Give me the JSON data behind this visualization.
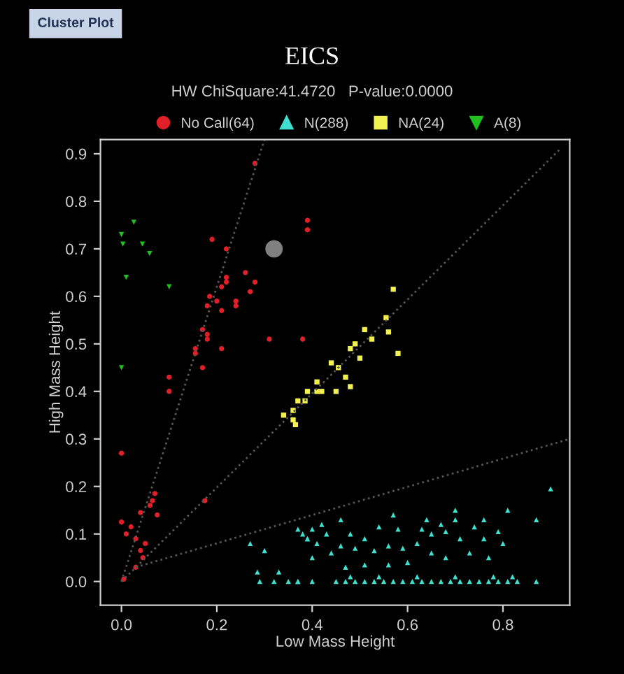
{
  "chart_data": {
    "type": "scatter",
    "title": "EICS",
    "subtitle": "HW ChiSquare:41.4720   P-value:0.0000",
    "xlabel": "Low Mass Height",
    "ylabel": "High Mass Height",
    "annotations": [
      "Cluster Plot"
    ],
    "xlim": [
      -0.044,
      0.94
    ],
    "ylim": [
      -0.05,
      0.93
    ],
    "xticks": [
      {
        "value": 0,
        "label": "0.0"
      },
      0.2,
      0.4,
      0.6,
      0.8
    ],
    "yticks": [
      {
        "value": 0,
        "label": "0.0"
      },
      0.1,
      0.2,
      0.3,
      0.4,
      0.5,
      0.6,
      0.7,
      0.8,
      0.9
    ],
    "grid": false,
    "legend": "top",
    "series": [
      {
        "type": "line",
        "color": "#555555",
        "line_style": "dotted",
        "marker": "none",
        "x": [
          0.0,
          0.3
        ],
        "values": [
          0.0,
          0.93
        ]
      },
      {
        "type": "line",
        "color": "#555555",
        "line_style": "dotted",
        "marker": "none",
        "x": [
          0.0,
          0.92
        ],
        "values": [
          0.0,
          0.91
        ]
      },
      {
        "type": "line",
        "color": "#555555",
        "line_style": "dotted",
        "marker": "none",
        "x": [
          0.03,
          0.94
        ],
        "values": [
          0.03,
          0.3
        ]
      },
      {
        "name": "No Call(64)",
        "color": "#e02028",
        "marker": "circle",
        "x": [
          0.19,
          0.22,
          0.22,
          0.22,
          0.26,
          0.28,
          0.21,
          0.27,
          0.185,
          0.2,
          0.24,
          0.18,
          0.21,
          0.24,
          0.17,
          0.18,
          0.18,
          0.21,
          0.155,
          0.155,
          0.17,
          0.39,
          0.39,
          0.31,
          0.38,
          0.1,
          0.1,
          0.28,
          0.0,
          0.07,
          0.065,
          0.06,
          0.04,
          0.075,
          0.0,
          0.02,
          0.01,
          0.03,
          0.05,
          0.04,
          0.045,
          0.03,
          0.005,
          0.175
        ],
        "values": [
          0.72,
          0.7,
          0.64,
          0.63,
          0.65,
          0.63,
          0.62,
          0.61,
          0.6,
          0.59,
          0.59,
          0.58,
          0.57,
          0.58,
          0.53,
          0.52,
          0.51,
          0.49,
          0.49,
          0.48,
          0.45,
          0.76,
          0.74,
          0.51,
          0.51,
          0.43,
          0.4,
          0.88,
          0.27,
          0.185,
          0.17,
          0.16,
          0.145,
          0.14,
          0.125,
          0.115,
          0.1,
          0.09,
          0.08,
          0.065,
          0.05,
          0.03,
          0.005,
          0.17
        ]
      },
      {
        "name": "N(288)",
        "color": "#40e0d0",
        "marker": "triangle",
        "x": [
          0.9,
          0.87,
          0.81,
          0.76,
          0.7,
          0.7,
          0.64,
          0.57,
          0.46,
          0.42,
          0.4,
          0.39,
          0.43,
          0.48,
          0.51,
          0.54,
          0.58,
          0.63,
          0.67,
          0.68,
          0.74,
          0.79,
          0.8,
          0.76,
          0.71,
          0.65,
          0.62,
          0.59,
          0.56,
          0.53,
          0.49,
          0.46,
          0.44,
          0.4,
          0.37,
          0.4,
          0.65,
          0.68,
          0.73,
          0.77,
          0.82,
          0.87,
          0.6,
          0.56,
          0.51,
          0.47,
          0.27,
          0.285,
          0.29,
          0.3,
          0.32,
          0.35,
          0.37,
          0.38,
          0.39,
          0.37,
          0.41,
          0.33,
          0.45,
          0.47,
          0.49,
          0.51,
          0.53,
          0.55,
          0.57,
          0.59,
          0.61,
          0.63,
          0.65,
          0.67,
          0.69,
          0.71,
          0.73,
          0.75,
          0.77,
          0.79,
          0.81,
          0.83,
          0.48,
          0.54,
          0.62,
          0.7,
          0.78
        ],
        "values": [
          0.195,
          0.13,
          0.15,
          0.13,
          0.15,
          0.13,
          0.13,
          0.14,
          0.13,
          0.12,
          0.11,
          0.09,
          0.1,
          0.1,
          0.09,
          0.115,
          0.11,
          0.11,
          0.12,
          0.105,
          0.115,
          0.105,
          0.08,
          0.09,
          0.09,
          0.1,
          0.08,
          0.07,
          0.075,
          0.065,
          0.07,
          0.075,
          0.06,
          0.05,
          0.0,
          0.0,
          0.06,
          0.05,
          0.06,
          0.05,
          0.01,
          0.0,
          0.04,
          0.035,
          0.035,
          0.03,
          0.08,
          0.02,
          0.0,
          0.065,
          0.0,
          0.0,
          0.0,
          0.1,
          0.09,
          0.11,
          0.08,
          0.02,
          0.0,
          0.0,
          0.0,
          0.0,
          0.0,
          0.0,
          0.0,
          0.0,
          0.0,
          0.0,
          0.0,
          0.0,
          0.0,
          0.0,
          0.0,
          0.0,
          0.0,
          0.0,
          0.0,
          0.0,
          0.01,
          0.01,
          0.01,
          0.01,
          0.01
        ]
      },
      {
        "name": "NA(24)",
        "color": "#f0f050",
        "marker": "square",
        "x": [
          0.57,
          0.555,
          0.56,
          0.51,
          0.525,
          0.49,
          0.48,
          0.5,
          0.58,
          0.44,
          0.455,
          0.41,
          0.42,
          0.45,
          0.48,
          0.34,
          0.36,
          0.36,
          0.365,
          0.37,
          0.39,
          0.41,
          0.385,
          0.47
        ],
        "values": [
          0.615,
          0.555,
          0.525,
          0.53,
          0.51,
          0.5,
          0.49,
          0.47,
          0.48,
          0.46,
          0.45,
          0.42,
          0.4,
          0.4,
          0.41,
          0.35,
          0.36,
          0.34,
          0.33,
          0.38,
          0.4,
          0.4,
          0.38,
          0.43
        ]
      },
      {
        "name": "A(8)",
        "color": "#20c020",
        "marker": "triangle_down",
        "x": [
          0.026,
          0.0,
          0.003,
          0.044,
          0.059,
          0.01,
          0.1,
          0.0
        ],
        "values": [
          0.756,
          0.73,
          0.71,
          0.71,
          0.69,
          0.64,
          0.62,
          0.45
        ]
      },
      {
        "color": "#808080",
        "marker": "circle",
        "x": [
          0.32
        ],
        "values": [
          0.7
        ]
      }
    ]
  }
}
